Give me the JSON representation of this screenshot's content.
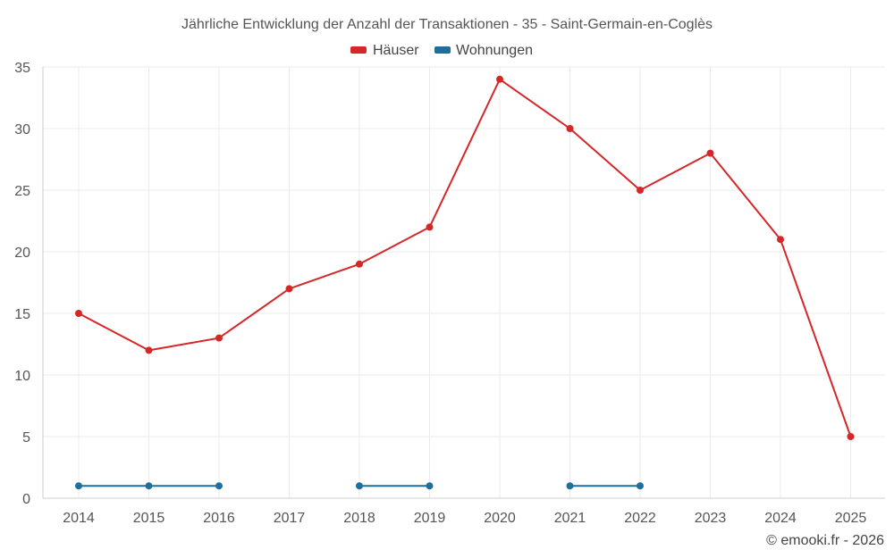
{
  "chart_data": {
    "type": "line",
    "title": "Jährliche Entwicklung der Anzahl der Transaktionen - 35 - Saint-Germain-en-Coglès",
    "categories": [
      "2014",
      "2015",
      "2016",
      "2017",
      "2018",
      "2019",
      "2020",
      "2021",
      "2022",
      "2023",
      "2024",
      "2025"
    ],
    "series": [
      {
        "name": "Häuser",
        "color": "#d62728",
        "values": [
          15,
          12,
          13,
          17,
          19,
          22,
          34,
          30,
          25,
          28,
          21,
          5
        ]
      },
      {
        "name": "Wohnungen",
        "color": "#1f6e9c",
        "values": [
          1,
          1,
          1,
          null,
          1,
          1,
          null,
          1,
          1,
          null,
          null,
          null
        ]
      }
    ],
    "xlabel": "",
    "ylabel": "",
    "ylim": [
      0,
      35
    ],
    "yticks": [
      0,
      5,
      10,
      15,
      20,
      25,
      30,
      35
    ],
    "grid": true,
    "legend_position": "top-center"
  },
  "credit": "© emooki.fr - 2026"
}
